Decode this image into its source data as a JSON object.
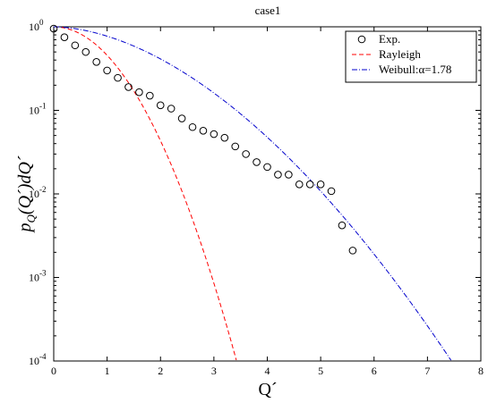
{
  "chart_data": {
    "type": "scatter",
    "title": "case1",
    "xlabel": "Q´",
    "ylabel_parts": {
      "p": "p",
      "sub": "Q",
      "mid": "(Q´)dQ´"
    },
    "xlim": [
      0,
      8
    ],
    "ylim": [
      0.0001,
      1
    ],
    "yscale": "log",
    "grid": false,
    "legend_position": "top-right",
    "x_ticks": [
      "0",
      "1",
      "2",
      "3",
      "4",
      "5",
      "6",
      "7",
      "8"
    ],
    "y_ticks": [
      {
        "base": "10",
        "exp": "0",
        "value": 1
      },
      {
        "base": "10",
        "exp": "-1",
        "value": 0.1
      },
      {
        "base": "10",
        "exp": "-2",
        "value": 0.01
      },
      {
        "base": "10",
        "exp": "-3",
        "value": 0.001
      },
      {
        "base": "10",
        "exp": "-4",
        "value": 0.0001
      }
    ],
    "series": [
      {
        "name": "Exp.",
        "style": "markers",
        "color": "#000000",
        "x": [
          0,
          0.2,
          0.4,
          0.6,
          0.8,
          1.0,
          1.2,
          1.4,
          1.6,
          1.8,
          2.0,
          2.2,
          2.4,
          2.6,
          2.8,
          3.0,
          3.2,
          3.4,
          3.6,
          3.8,
          4.0,
          4.2,
          4.4,
          4.6,
          4.8,
          5.0,
          5.2,
          5.4,
          5.6
        ],
        "y": [
          0.95,
          0.75,
          0.6,
          0.5,
          0.38,
          0.3,
          0.245,
          0.19,
          0.165,
          0.15,
          0.115,
          0.105,
          0.08,
          0.063,
          0.057,
          0.052,
          0.047,
          0.037,
          0.03,
          0.024,
          0.021,
          0.017,
          0.017,
          0.013,
          0.013,
          0.013,
          0.0108,
          0.0042,
          0.0021
        ]
      },
      {
        "name": "Rayleigh",
        "style": "dashed",
        "color": "#ff0000",
        "curve": "exp(-pi*x^2/4)"
      },
      {
        "name": "Weibull: α=1.78",
        "legend_label": "Weibull:",
        "legend_alpha": "α=1.78",
        "style": "dashdot",
        "color": "#0000cc",
        "curve": "exp(-(x/lambda)^1.78)"
      }
    ]
  }
}
